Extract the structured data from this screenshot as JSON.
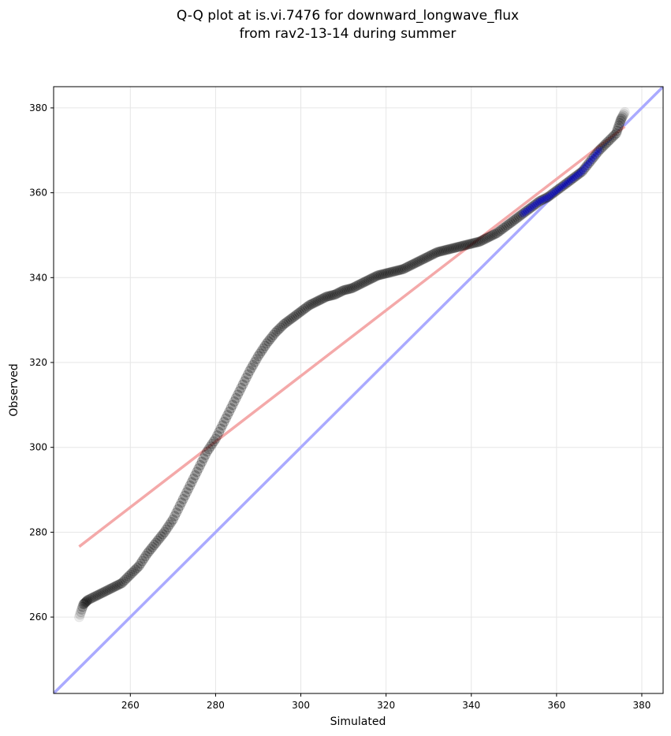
{
  "chart_data": {
    "type": "scatter",
    "title_line1": "Q-Q plot at is.vi.7476 for downward_longwave_flux",
    "title_line2": "from rav2-13-14 during summer",
    "xlabel": "Simulated",
    "ylabel": "Observed",
    "xlim": [
      242,
      385
    ],
    "ylim": [
      242,
      385
    ],
    "xticks": [
      260,
      280,
      300,
      320,
      340,
      360,
      380
    ],
    "yticks": [
      260,
      280,
      300,
      320,
      340,
      360,
      380
    ],
    "grid": true,
    "reference_lines": [
      {
        "kind": "one-to-one",
        "color": "#aaaaff",
        "x": [
          242,
          385
        ],
        "y": [
          242,
          385
        ]
      },
      {
        "kind": "fit",
        "color": "#f4a9a9",
        "x": [
          248,
          376
        ],
        "y": [
          276.6,
          375.6
        ]
      }
    ],
    "quantile_curve": {
      "x": [
        248,
        249,
        250,
        252,
        254,
        256,
        258,
        260,
        262,
        264,
        266,
        268,
        270,
        272,
        274,
        276,
        278,
        280,
        282,
        284,
        286,
        288,
        290,
        292,
        294,
        296,
        298,
        300,
        302,
        304,
        306,
        308,
        310,
        312,
        314,
        316,
        318,
        320,
        322,
        324,
        326,
        328,
        330,
        332,
        334,
        336,
        338,
        340,
        342,
        344,
        346,
        348,
        350,
        352,
        354,
        356,
        358,
        360,
        362,
        364,
        366,
        368,
        370,
        372,
        374,
        375,
        376
      ],
      "y": [
        260,
        263,
        264,
        265,
        266,
        267,
        268,
        270,
        272,
        275,
        277.5,
        280,
        283,
        287,
        291,
        295,
        299,
        302,
        306,
        310,
        314,
        318,
        321.5,
        324.5,
        327,
        329,
        330.5,
        332,
        333.5,
        334.5,
        335.5,
        336,
        337,
        337.5,
        338.5,
        339.5,
        340.5,
        341,
        341.5,
        342,
        343,
        344,
        345,
        346,
        346.5,
        347,
        347.5,
        348,
        348.5,
        349.5,
        350.5,
        352,
        353.5,
        355,
        356.5,
        358,
        359,
        360.5,
        362,
        363.5,
        365,
        367.5,
        370,
        372,
        374,
        377,
        379
      ]
    },
    "point_color": "#000000",
    "highlight_color": "#0000ff",
    "highlight_x_min": 352,
    "highlight_x_max": 370
  }
}
